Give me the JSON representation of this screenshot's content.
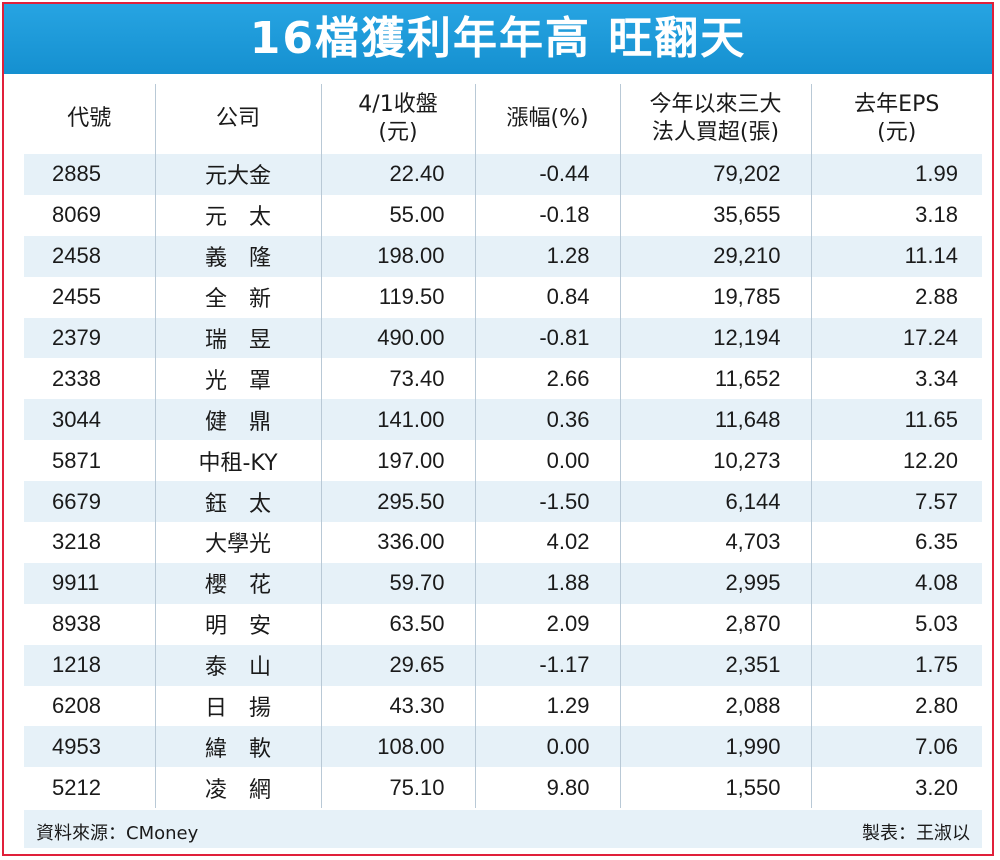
{
  "title": "16檔獲利年年高 旺翻天",
  "chart_data": {
    "type": "table",
    "columns": [
      "代號",
      "公司",
      "4/1收盤\n(元)",
      "漲幅(%)",
      "今年以來三大\n法人買超(張)",
      "去年EPS\n(元)"
    ],
    "rows": [
      [
        "2885",
        "元大金",
        "22.40",
        "-0.44",
        "79,202",
        "1.99"
      ],
      [
        "8069",
        "元　太",
        "55.00",
        "-0.18",
        "35,655",
        "3.18"
      ],
      [
        "2458",
        "義　隆",
        "198.00",
        "1.28",
        "29,210",
        "11.14"
      ],
      [
        "2455",
        "全　新",
        "119.50",
        "0.84",
        "19,785",
        "2.88"
      ],
      [
        "2379",
        "瑞　昱",
        "490.00",
        "-0.81",
        "12,194",
        "17.24"
      ],
      [
        "2338",
        "光　罩",
        "73.40",
        "2.66",
        "11,652",
        "3.34"
      ],
      [
        "3044",
        "健　鼎",
        "141.00",
        "0.36",
        "11,648",
        "11.65"
      ],
      [
        "5871",
        "中租-KY",
        "197.00",
        "0.00",
        "10,273",
        "12.20"
      ],
      [
        "6679",
        "鈺　太",
        "295.50",
        "-1.50",
        "6,144",
        "7.57"
      ],
      [
        "3218",
        "大學光",
        "336.00",
        "4.02",
        "4,703",
        "6.35"
      ],
      [
        "9911",
        "櫻　花",
        "59.70",
        "1.88",
        "2,995",
        "4.08"
      ],
      [
        "8938",
        "明　安",
        "63.50",
        "2.09",
        "2,870",
        "5.03"
      ],
      [
        "1218",
        "泰　山",
        "29.65",
        "-1.17",
        "2,351",
        "1.75"
      ],
      [
        "6208",
        "日　揚",
        "43.30",
        "1.29",
        "2,088",
        "2.80"
      ],
      [
        "4953",
        "緯　軟",
        "108.00",
        "0.00",
        "1,990",
        "7.06"
      ],
      [
        "5212",
        "凌　網",
        "75.10",
        "9.80",
        "1,550",
        "3.20"
      ]
    ]
  },
  "footer": {
    "source": "資料來源：CMoney",
    "credit": "製表：王淑以"
  },
  "colors": {
    "title_bg": "#1d9ad9",
    "border": "#e0203a",
    "stripe": "#e6f1f8"
  }
}
